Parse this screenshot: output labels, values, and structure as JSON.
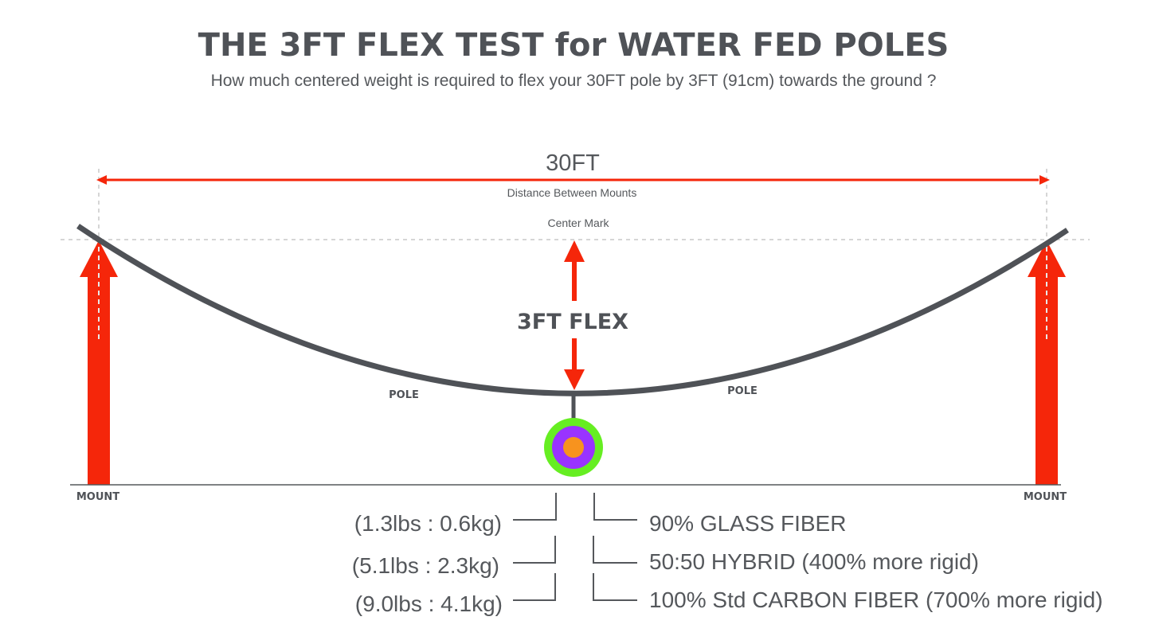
{
  "title": "THE 3FT FLEX TEST for WATER FED POLES",
  "subtitle": "How much centered weight is required to flex your 30FT pole by 3FT (91cm) towards the ground ?",
  "span_label": "30FT",
  "span_caption": "Distance Between Mounts",
  "center_mark_label": "Center Mark",
  "flex_label": "3FT FLEX",
  "pole_label_left": "POLE",
  "pole_label_right": "POLE",
  "mount_label_left": "MOUNT",
  "mount_label_right": "MOUNT",
  "weights": [
    {
      "weight": "(1.3lbs : 0.6kg)",
      "material": "90% GLASS FIBER",
      "color": "#f7931e"
    },
    {
      "weight": "(5.1lbs : 2.3kg)",
      "material": "50:50 HYBRID (400% more rigid)",
      "color": "#9933ff"
    },
    {
      "weight": "(9.0lbs : 4.1kg)",
      "material": "100% Std CARBON FIBER (700% more rigid)",
      "color": "#66ee22"
    }
  ],
  "colors": {
    "arrow": "#f5260a",
    "pole": "#4f5257",
    "text": "#55585c"
  }
}
